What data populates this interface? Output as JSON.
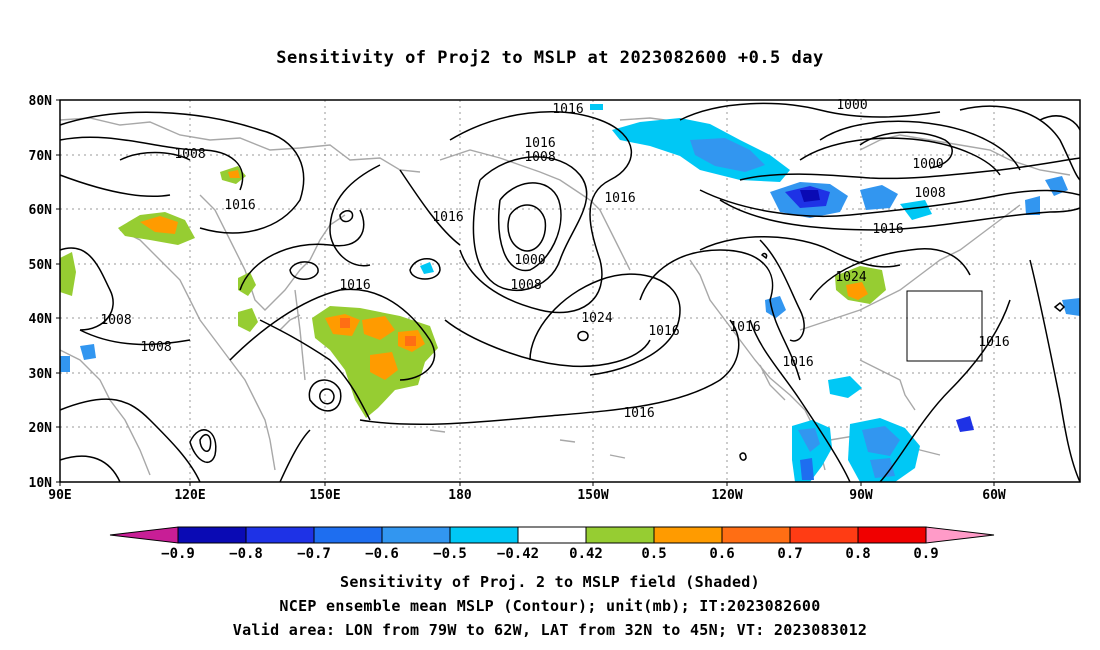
{
  "title": "Sensitivity of Proj2 to MSLP at 2023082600 +0.5 day",
  "axes": {
    "lat_labels": [
      "80N",
      "70N",
      "60N",
      "50N",
      "40N",
      "30N",
      "20N",
      "10N"
    ],
    "lon_labels": [
      "90E",
      "120E",
      "150E",
      "180",
      "150W",
      "120W",
      "90W",
      "60W"
    ]
  },
  "contour_labels": [
    {
      "text": "1016"
    },
    {
      "text": "1000"
    },
    {
      "text": "1016"
    },
    {
      "text": "1008"
    },
    {
      "text": "1008"
    },
    {
      "text": "1016"
    },
    {
      "text": "1016"
    },
    {
      "text": "1016"
    },
    {
      "text": "1000"
    },
    {
      "text": "1008"
    },
    {
      "text": "1016"
    },
    {
      "text": "1000"
    },
    {
      "text": "1008"
    },
    {
      "text": "1024"
    },
    {
      "text": "1016"
    },
    {
      "text": "1016"
    },
    {
      "text": "1016"
    },
    {
      "text": "1024"
    },
    {
      "text": "1016"
    },
    {
      "text": "1008"
    },
    {
      "text": "1008"
    },
    {
      "text": "1016"
    }
  ],
  "colorbar": {
    "labels": [
      "-0.9",
      "-0.8",
      "-0.7",
      "-0.6",
      "-0.5",
      "-0.42",
      "0.42",
      "0.5",
      "0.6",
      "0.7",
      "0.8",
      "0.9"
    ],
    "colors": [
      "#0a0ab4",
      "#1e32e6",
      "#1e6ef0",
      "#3296f0",
      "#00c8f5",
      "#ffffff",
      "#96cd32",
      "#ff9b00",
      "#ff6e14",
      "#ff3c14",
      "#f00000"
    ],
    "low_extend_color": "#c81e96",
    "high_extend_color": "#ff9bc8"
  },
  "captions": {
    "line1": "Sensitivity of Proj. 2 to MSLP field (Shaded)",
    "line2": "NCEP ensemble mean MSLP (Contour); unit(mb); IT:2023082600",
    "line3": "Valid area: LON from 79W to 62W, LAT from 32N to 45N; VT: 2023083012"
  }
}
